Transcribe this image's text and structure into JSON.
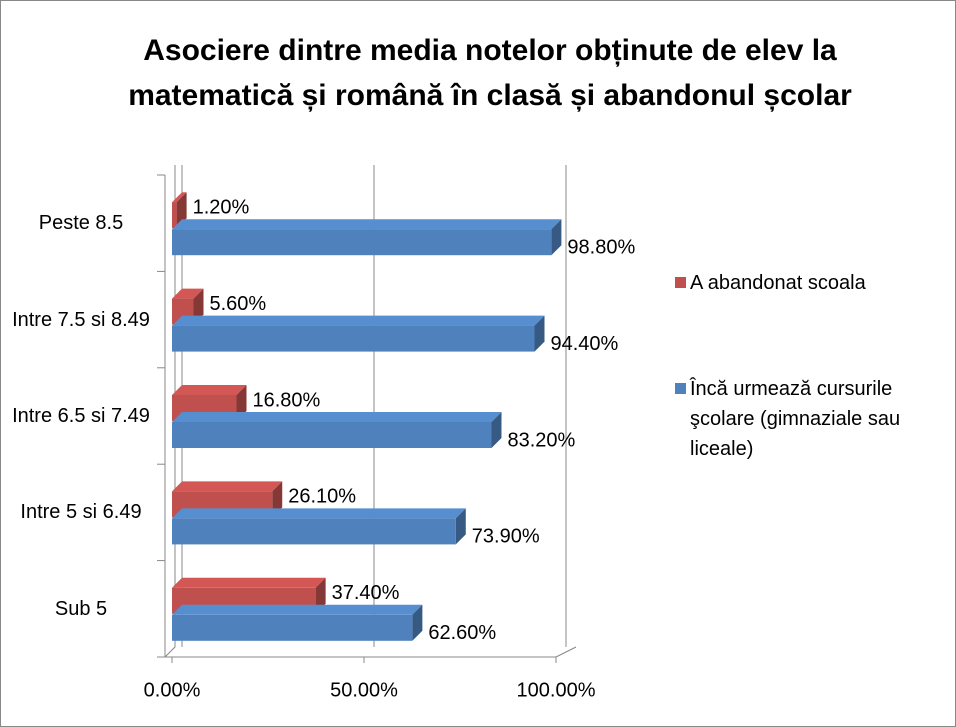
{
  "chart_data": {
    "type": "bar3d_horizontal",
    "title": "Asociere dintre media notelor obținute de elev la matematică și română în clasă și abandonul școlar",
    "categories": [
      "Peste 8.5",
      "Intre 7.5 si 8.49",
      "Intre 6.5 si 7.49",
      "Intre 5 si 6.49",
      "Sub 5"
    ],
    "series": [
      {
        "name": "A abandonat scoala",
        "color": "#c0504d",
        "values": [
          1.2,
          5.6,
          16.8,
          26.1,
          37.4
        ],
        "value_labels": [
          "1.20%",
          "5.60%",
          "16.80%",
          "26.10%",
          "37.40%"
        ]
      },
      {
        "name": "Încă urmează cursurile şcolare (gimnaziale sau liceale)",
        "color": "#4f81bd",
        "values": [
          98.8,
          94.4,
          83.2,
          73.9,
          62.6
        ],
        "value_labels": [
          "98.80%",
          "94.40%",
          "83.20%",
          "73.90%",
          "62.60%"
        ]
      }
    ],
    "xlim": [
      0,
      100
    ],
    "xticks": [
      {
        "value": 0,
        "label": "0.00%"
      },
      {
        "value": 50,
        "label": "50.00%"
      },
      {
        "value": 100,
        "label": "100.00%"
      }
    ],
    "grid": true,
    "legend": "right"
  }
}
